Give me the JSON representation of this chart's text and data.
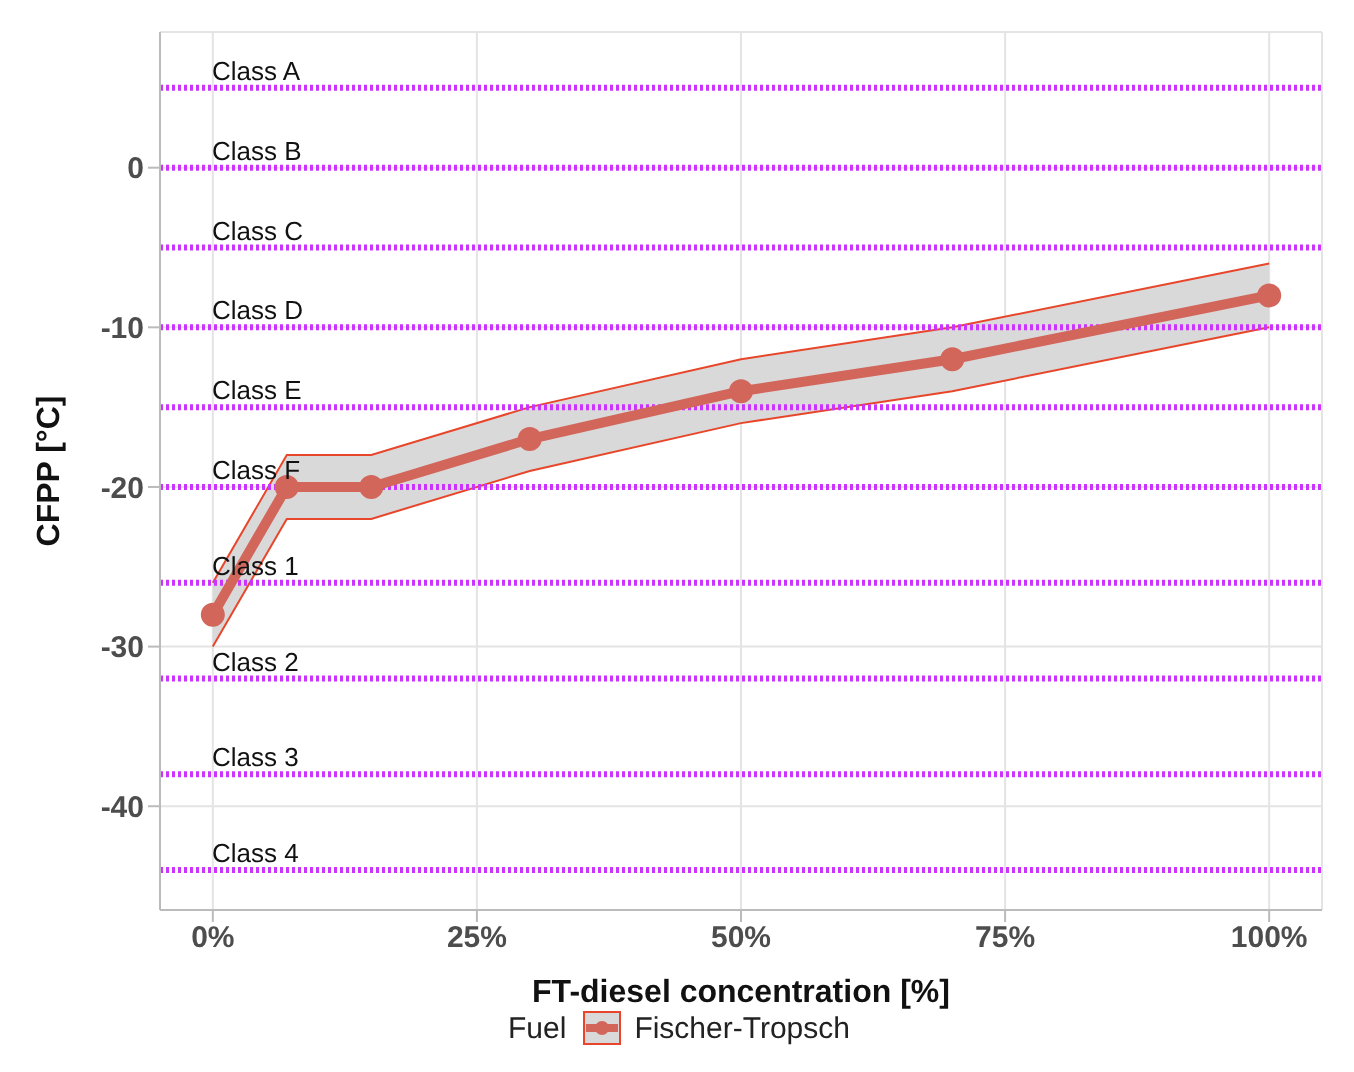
{
  "chart_data": {
    "type": "line",
    "xlabel": "FT-diesel concentration [%]",
    "ylabel": "CFPP [°C]",
    "legend_title": "Fuel",
    "legend": "bottom",
    "grid": true,
    "marker": "circle",
    "line_style": "solid",
    "xlim": [
      -5,
      105
    ],
    "xticks": [
      {
        "value": 0,
        "label": "0%"
      },
      {
        "value": 25,
        "label": "25%"
      },
      {
        "value": 50,
        "label": "50%"
      },
      {
        "value": 75,
        "label": "75%"
      },
      {
        "value": 100,
        "label": "100%"
      }
    ],
    "ylim": [
      -46.5,
      8.5
    ],
    "yticks": [
      -40,
      -30,
      -20,
      -10,
      0
    ],
    "series": [
      {
        "name": "Fischer-Tropsch",
        "color": "#d2665a",
        "x": [
          0,
          7,
          15,
          30,
          50,
          70,
          100
        ],
        "values": [
          -28,
          -20,
          -20,
          -17,
          -14,
          -12,
          -8
        ],
        "lower": [
          -30,
          -22,
          -22,
          -19,
          -16,
          -14,
          -10
        ],
        "upper": [
          -26,
          -18,
          -18,
          -15,
          -12,
          -10,
          -6
        ]
      }
    ],
    "ref_lines": [
      {
        "axis": "y",
        "value": 5,
        "label": "Class A",
        "color": "#cc33ff",
        "line_style": "dotted"
      },
      {
        "axis": "y",
        "value": 0,
        "label": "Class B",
        "color": "#cc33ff",
        "line_style": "dotted"
      },
      {
        "axis": "y",
        "value": -5,
        "label": "Class C",
        "color": "#cc33ff",
        "line_style": "dotted"
      },
      {
        "axis": "y",
        "value": -10,
        "label": "Class D",
        "color": "#cc33ff",
        "line_style": "dotted"
      },
      {
        "axis": "y",
        "value": -15,
        "label": "Class E",
        "color": "#cc33ff",
        "line_style": "dotted"
      },
      {
        "axis": "y",
        "value": -20,
        "label": "Class F",
        "color": "#cc33ff",
        "line_style": "dotted"
      },
      {
        "axis": "y",
        "value": -26,
        "label": "Class 1",
        "color": "#cc33ff",
        "line_style": "dotted"
      },
      {
        "axis": "y",
        "value": -32,
        "label": "Class 2",
        "color": "#cc33ff",
        "line_style": "dotted"
      },
      {
        "axis": "y",
        "value": -38,
        "label": "Class 3",
        "color": "#cc33ff",
        "line_style": "dotted"
      },
      {
        "axis": "y",
        "value": -44,
        "label": "Class 4",
        "color": "#cc33ff",
        "line_style": "dotted"
      }
    ]
  }
}
